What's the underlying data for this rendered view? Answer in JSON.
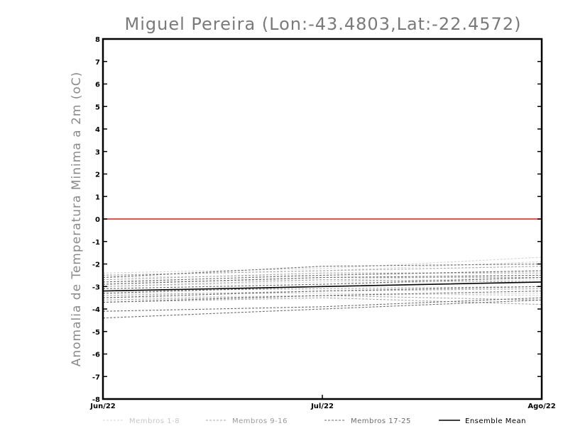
{
  "chart_data": {
    "type": "line",
    "title": "Miguel Pereira (Lon:-43.4803,Lat:-22.4572)",
    "ylabel": "Anomalia de Temperatura Minima a 2m (oC)",
    "xlabel": "",
    "categories": [
      "Jun/22",
      "Jul/22",
      "Ago/22"
    ],
    "ylim": [
      -8,
      8
    ],
    "yticks": [
      8,
      7,
      6,
      5,
      4,
      3,
      2,
      1,
      0,
      -1,
      -2,
      -3,
      -4,
      -5,
      -6,
      -7,
      -8
    ],
    "ytick_labels": [
      "8",
      "7",
      "6",
      "5",
      "4",
      "3",
      "2",
      "1",
      "0",
      "-1",
      "-2",
      "-3",
      "-4",
      "-5",
      "-6",
      "-7",
      "-8"
    ],
    "reference_line": {
      "y": 0,
      "color": "#e8392f"
    },
    "legend": {
      "position": "bottom",
      "entries": [
        {
          "label": "Membros 1-8",
          "color": "#d4d4d4",
          "dashed": true
        },
        {
          "label": "Membros 9-16",
          "color": "#a9a9a9",
          "dashed": true
        },
        {
          "label": "Membros 17-25",
          "color": "#6e6e6e",
          "dashed": true
        },
        {
          "label": "Ensemble Mean",
          "color": "#000000",
          "dashed": false
        }
      ]
    },
    "series": [
      {
        "name": "Membro 1",
        "group": 0,
        "values": [
          -2.4,
          -2.2,
          -1.7
        ]
      },
      {
        "name": "Membro 2",
        "group": 0,
        "values": [
          -2.5,
          -2.3,
          -1.9
        ]
      },
      {
        "name": "Membro 3",
        "group": 0,
        "values": [
          -2.6,
          -2.5,
          -2.3
        ]
      },
      {
        "name": "Membro 4",
        "group": 0,
        "values": [
          -2.8,
          -2.7,
          -2.5
        ]
      },
      {
        "name": "Membro 5",
        "group": 0,
        "values": [
          -3.0,
          -2.8,
          -2.6
        ]
      },
      {
        "name": "Membro 6",
        "group": 0,
        "values": [
          -3.1,
          -2.9,
          -2.7
        ]
      },
      {
        "name": "Membro 7",
        "group": 0,
        "values": [
          -3.3,
          -3.3,
          -3.4
        ]
      },
      {
        "name": "Membro 8",
        "group": 0,
        "values": [
          -3.5,
          -3.4,
          -3.3
        ]
      },
      {
        "name": "Membro 9",
        "group": 1,
        "values": [
          -2.5,
          -2.3,
          -2.1
        ]
      },
      {
        "name": "Membro 10",
        "group": 1,
        "values": [
          -2.7,
          -2.4,
          -2.4
        ]
      },
      {
        "name": "Membro 11",
        "group": 1,
        "values": [
          -2.9,
          -2.6,
          -2.6
        ]
      },
      {
        "name": "Membro 12",
        "group": 1,
        "values": [
          -3.0,
          -2.7,
          -2.8
        ]
      },
      {
        "name": "Membro 13",
        "group": 1,
        "values": [
          -3.2,
          -3.1,
          -3.0
        ]
      },
      {
        "name": "Membro 14",
        "group": 1,
        "values": [
          -3.4,
          -3.2,
          -3.1
        ]
      },
      {
        "name": "Membro 15",
        "group": 1,
        "values": [
          -3.6,
          -3.4,
          -3.6
        ]
      },
      {
        "name": "Membro 16",
        "group": 1,
        "values": [
          -3.7,
          -3.5,
          -3.8
        ]
      },
      {
        "name": "Membro 17",
        "group": 2,
        "values": [
          -2.6,
          -2.1,
          -2.0
        ]
      },
      {
        "name": "Membro 18",
        "group": 2,
        "values": [
          -2.8,
          -2.5,
          -2.3
        ]
      },
      {
        "name": "Membro 19",
        "group": 2,
        "values": [
          -2.9,
          -2.6,
          -2.5
        ]
      },
      {
        "name": "Membro 20",
        "group": 2,
        "values": [
          -3.1,
          -2.9,
          -2.6
        ]
      },
      {
        "name": "Membro 21",
        "group": 2,
        "values": [
          -3.3,
          -3.0,
          -2.8
        ]
      },
      {
        "name": "Membro 22",
        "group": 2,
        "values": [
          -3.5,
          -3.2,
          -3.0
        ]
      },
      {
        "name": "Membro 23",
        "group": 2,
        "values": [
          -3.7,
          -3.4,
          -3.2
        ]
      },
      {
        "name": "Membro 24",
        "group": 2,
        "values": [
          -4.1,
          -3.9,
          -3.5
        ]
      },
      {
        "name": "Membro 25",
        "group": 2,
        "values": [
          -4.4,
          -4.0,
          -3.6
        ]
      },
      {
        "name": "Ensemble Mean",
        "group": 3,
        "values": [
          -3.2,
          -3.0,
          -2.8
        ]
      }
    ]
  }
}
